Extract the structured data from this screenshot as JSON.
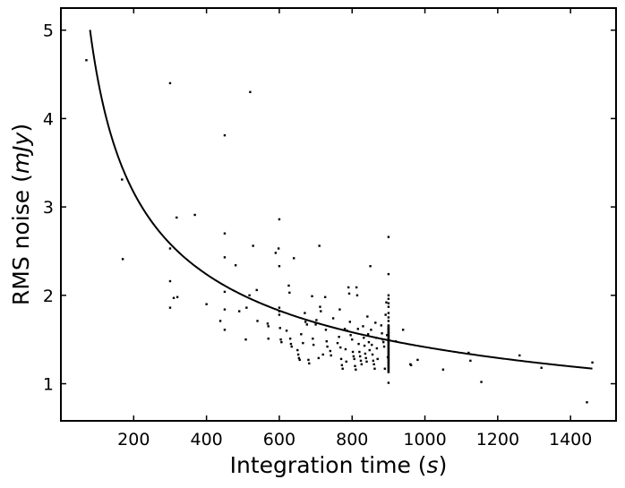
{
  "chart_data": {
    "type": "scatter",
    "xlabel": {
      "prefix": "Integration time (",
      "var": "s",
      "suffix": ")"
    },
    "ylabel": {
      "prefix": "RMS noise (",
      "var": "mJy",
      "suffix": ")"
    },
    "xlim": [
      0,
      1525
    ],
    "ylim": [
      0.58,
      5.25
    ],
    "xticks": [
      200,
      400,
      600,
      800,
      1000,
      1200,
      1400
    ],
    "yticks": [
      1,
      2,
      3,
      4,
      5
    ],
    "grid": false,
    "legend": "none",
    "colors": {
      "points": "#000000",
      "curve": "#000000",
      "axes": "#000000"
    },
    "curve": {
      "type": "power-law",
      "a": 44.75,
      "b": -0.5,
      "x_start": 80,
      "x_end": 1460
    },
    "series": [
      {
        "kind": "points",
        "points": [
          [
            70,
            4.66
          ],
          [
            168,
            3.31
          ],
          [
            170,
            2.41
          ],
          [
            300,
            4.4
          ],
          [
            300,
            2.53
          ],
          [
            300,
            2.16
          ],
          [
            300,
            1.86
          ],
          [
            310,
            1.97
          ],
          [
            318,
            2.88
          ],
          [
            320,
            1.98
          ],
          [
            368,
            2.91
          ],
          [
            400,
            1.9
          ],
          [
            438,
            1.71
          ],
          [
            450,
            3.81
          ],
          [
            450,
            2.7
          ],
          [
            450,
            2.43
          ],
          [
            450,
            2.04
          ],
          [
            450,
            1.84
          ],
          [
            450,
            1.61
          ],
          [
            480,
            2.34
          ],
          [
            490,
            1.82
          ],
          [
            508,
            1.5
          ],
          [
            510,
            1.86
          ],
          [
            518,
            2.0
          ],
          [
            520,
            4.3
          ],
          [
            528,
            2.56
          ],
          [
            538,
            2.06
          ],
          [
            540,
            1.71
          ],
          [
            568,
            1.68
          ],
          [
            570,
            1.65
          ],
          [
            570,
            1.51
          ],
          [
            590,
            2.48
          ],
          [
            598,
            2.53
          ],
          [
            600,
            2.86
          ],
          [
            600,
            2.33
          ],
          [
            600,
            1.86
          ],
          [
            600,
            1.82
          ],
          [
            600,
            1.78
          ],
          [
            602,
            1.63
          ],
          [
            604,
            1.5
          ],
          [
            606,
            1.47
          ],
          [
            620,
            1.6
          ],
          [
            626,
            2.11
          ],
          [
            628,
            2.03
          ],
          [
            630,
            1.51
          ],
          [
            632,
            1.45
          ],
          [
            634,
            1.42
          ],
          [
            640,
            2.42
          ],
          [
            650,
            1.38
          ],
          [
            652,
            1.33
          ],
          [
            654,
            1.29
          ],
          [
            656,
            1.27
          ],
          [
            660,
            1.56
          ],
          [
            665,
            1.46
          ],
          [
            670,
            1.8
          ],
          [
            672,
            1.7
          ],
          [
            676,
            1.67
          ],
          [
            680,
            1.27
          ],
          [
            682,
            1.23
          ],
          [
            690,
            1.99
          ],
          [
            692,
            1.51
          ],
          [
            694,
            1.44
          ],
          [
            700,
            1.67
          ],
          [
            702,
            1.72
          ],
          [
            708,
            1.29
          ],
          [
            710,
            2.56
          ],
          [
            712,
            1.87
          ],
          [
            714,
            1.82
          ],
          [
            720,
            1.33
          ],
          [
            726,
            1.98
          ],
          [
            728,
            1.61
          ],
          [
            730,
            1.48
          ],
          [
            732,
            1.42
          ],
          [
            740,
            1.37
          ],
          [
            742,
            1.32
          ],
          [
            748,
            1.74
          ],
          [
            760,
            1.46
          ],
          [
            764,
            1.53
          ],
          [
            766,
            1.84
          ],
          [
            768,
            1.41
          ],
          [
            770,
            1.28
          ],
          [
            772,
            1.21
          ],
          [
            774,
            1.17
          ],
          [
            780,
            1.62
          ],
          [
            782,
            1.39
          ],
          [
            784,
            1.25
          ],
          [
            786,
            1.6
          ],
          [
            790,
            2.09
          ],
          [
            792,
            2.02
          ],
          [
            794,
            1.7
          ],
          [
            796,
            1.55
          ],
          [
            800,
            1.5
          ],
          [
            802,
            1.36
          ],
          [
            804,
            1.31
          ],
          [
            806,
            1.28
          ],
          [
            808,
            1.2
          ],
          [
            810,
            1.16
          ],
          [
            812,
            2.09
          ],
          [
            814,
            2.0
          ],
          [
            816,
            1.62
          ],
          [
            818,
            1.45
          ],
          [
            820,
            1.36
          ],
          [
            822,
            1.31
          ],
          [
            824,
            1.26
          ],
          [
            826,
            1.22
          ],
          [
            830,
            1.65
          ],
          [
            832,
            1.52
          ],
          [
            834,
            1.43
          ],
          [
            836,
            1.34
          ],
          [
            838,
            1.29
          ],
          [
            840,
            1.25
          ],
          [
            842,
            1.76
          ],
          [
            844,
            1.56
          ],
          [
            846,
            1.47
          ],
          [
            848,
            1.38
          ],
          [
            850,
            2.33
          ],
          [
            852,
            1.61
          ],
          [
            854,
            1.44
          ],
          [
            856,
            1.33
          ],
          [
            858,
            1.26
          ],
          [
            860,
            1.22
          ],
          [
            862,
            1.17
          ],
          [
            864,
            1.69
          ],
          [
            866,
            1.52
          ],
          [
            868,
            1.4
          ],
          [
            870,
            1.28
          ],
          [
            880,
            1.66
          ],
          [
            882,
            1.57
          ],
          [
            884,
            1.5
          ],
          [
            886,
            1.47
          ],
          [
            888,
            1.42
          ],
          [
            890,
            1.17
          ],
          [
            892,
            1.78
          ],
          [
            894,
            1.92
          ],
          [
            896,
            1.55
          ],
          [
            898,
            1.3
          ],
          [
            900,
            2.66
          ],
          [
            900,
            2.24
          ],
          [
            900,
            2.0
          ],
          [
            900,
            1.96
          ],
          [
            900,
            1.91
          ],
          [
            900,
            1.87
          ],
          [
            900,
            1.8
          ],
          [
            900,
            1.75
          ],
          [
            900,
            1.71
          ],
          [
            900,
            1.66
          ],
          [
            900,
            1.62
          ],
          [
            900,
            1.58
          ],
          [
            900,
            1.54
          ],
          [
            900,
            1.5
          ],
          [
            900,
            1.01
          ],
          [
            920,
            1.48
          ],
          [
            940,
            1.61
          ],
          [
            960,
            1.22
          ],
          [
            962,
            1.21
          ],
          [
            980,
            1.27
          ],
          [
            1050,
            1.16
          ],
          [
            1120,
            1.35
          ],
          [
            1125,
            1.26
          ],
          [
            1155,
            1.02
          ],
          [
            1260,
            1.32
          ],
          [
            1320,
            1.18
          ],
          [
            1445,
            0.79
          ],
          [
            1460,
            1.24
          ]
        ]
      },
      {
        "kind": "vertical-segment",
        "x": 900,
        "y_from": 1.12,
        "y_to": 1.66
      }
    ]
  }
}
